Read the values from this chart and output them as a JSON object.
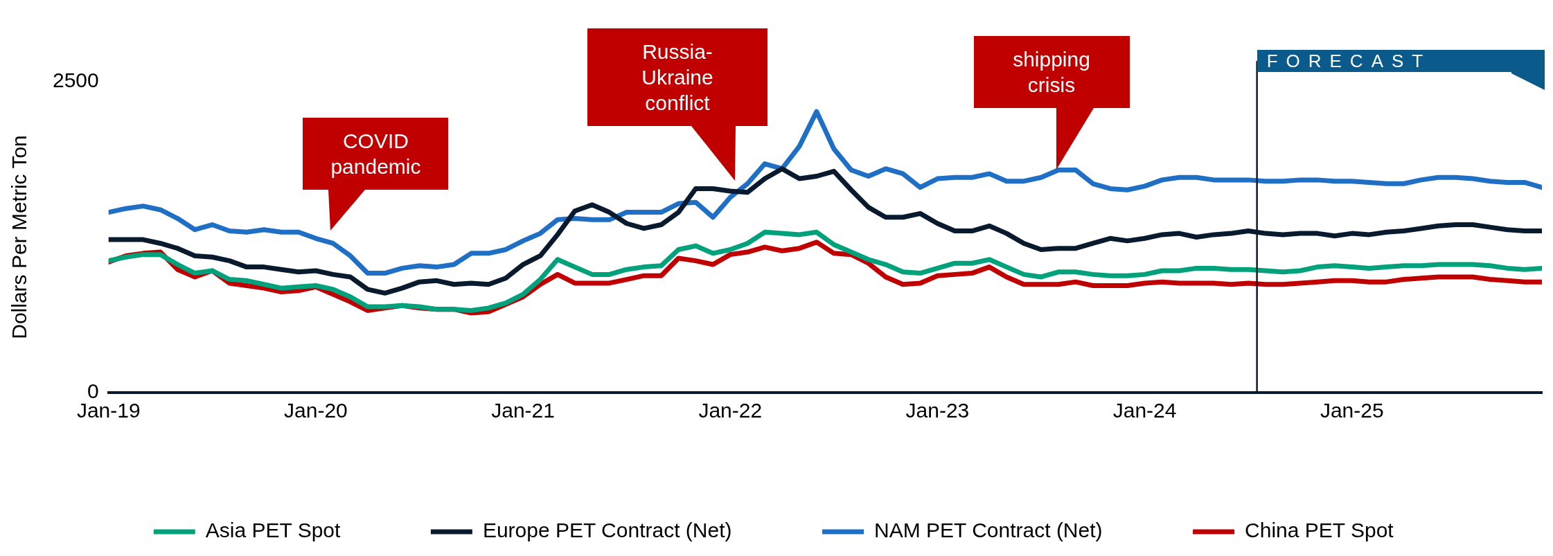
{
  "chart_data": {
    "type": "line",
    "ylabel": "Dollars Per Metric Ton",
    "x": [
      "2019-01",
      "2019-02",
      "2019-03",
      "2019-04",
      "2019-05",
      "2019-06",
      "2019-07",
      "2019-08",
      "2019-09",
      "2019-10",
      "2019-11",
      "2019-12",
      "2020-01",
      "2020-02",
      "2020-03",
      "2020-04",
      "2020-05",
      "2020-06",
      "2020-07",
      "2020-08",
      "2020-09",
      "2020-10",
      "2020-11",
      "2020-12",
      "2021-01",
      "2021-02",
      "2021-03",
      "2021-04",
      "2021-05",
      "2021-06",
      "2021-07",
      "2021-08",
      "2021-09",
      "2021-10",
      "2021-11",
      "2021-12",
      "2022-01",
      "2022-02",
      "2022-03",
      "2022-04",
      "2022-05",
      "2022-06",
      "2022-07",
      "2022-08",
      "2022-09",
      "2022-10",
      "2022-11",
      "2022-12",
      "2023-01",
      "2023-02",
      "2023-03",
      "2023-04",
      "2023-05",
      "2023-06",
      "2023-07",
      "2023-08",
      "2023-09",
      "2023-10",
      "2023-11",
      "2023-12",
      "2024-01",
      "2024-02",
      "2024-03",
      "2024-04",
      "2024-05",
      "2024-06",
      "2024-07",
      "2024-08",
      "2024-09",
      "2024-10",
      "2024-11",
      "2024-12",
      "2025-01",
      "2025-02",
      "2025-03",
      "2025-04",
      "2025-05",
      "2025-06",
      "2025-07",
      "2025-08",
      "2025-09",
      "2025-10",
      "2025-11",
      "2025-12"
    ],
    "series": [
      {
        "name": "Asia PET Spot",
        "color": "#00a17b",
        "values": [
          1060,
          1090,
          1110,
          1110,
          1030,
          960,
          980,
          910,
          900,
          870,
          840,
          850,
          860,
          830,
          770,
          690,
          690,
          700,
          690,
          670,
          670,
          660,
          680,
          720,
          790,
          910,
          1070,
          1010,
          950,
          950,
          990,
          1010,
          1020,
          1150,
          1180,
          1120,
          1150,
          1200,
          1290,
          1280,
          1270,
          1290,
          1190,
          1130,
          1070,
          1030,
          970,
          960,
          1000,
          1040,
          1040,
          1070,
          1010,
          950,
          930,
          970,
          970,
          950,
          940,
          940,
          950,
          980,
          980,
          1000,
          1000,
          990,
          990,
          980,
          970,
          980,
          1010,
          1020,
          1010,
          1000,
          1010,
          1020,
          1020,
          1030,
          1030,
          1030,
          1020,
          1000,
          990,
          1000
        ]
      },
      {
        "name": "Europe PET Contract (Net)",
        "color": "#0a1a2e",
        "values": [
          1230,
          1230,
          1230,
          1200,
          1160,
          1100,
          1090,
          1060,
          1010,
          1010,
          990,
          970,
          980,
          950,
          930,
          830,
          800,
          840,
          890,
          900,
          870,
          880,
          870,
          920,
          1030,
          1100,
          1270,
          1460,
          1510,
          1450,
          1360,
          1320,
          1350,
          1450,
          1640,
          1640,
          1620,
          1610,
          1720,
          1800,
          1720,
          1740,
          1780,
          1630,
          1490,
          1410,
          1410,
          1440,
          1360,
          1300,
          1300,
          1340,
          1280,
          1200,
          1150,
          1160,
          1160,
          1200,
          1240,
          1220,
          1240,
          1270,
          1280,
          1250,
          1270,
          1280,
          1300,
          1280,
          1270,
          1280,
          1280,
          1260,
          1280,
          1270,
          1290,
          1300,
          1320,
          1340,
          1350,
          1350,
          1330,
          1310,
          1300,
          1300
        ]
      },
      {
        "name": "NAM PET Contract (Net)",
        "color": "#1f6fc5",
        "values": [
          1450,
          1480,
          1500,
          1470,
          1400,
          1310,
          1350,
          1300,
          1290,
          1310,
          1290,
          1290,
          1240,
          1200,
          1100,
          960,
          960,
          1000,
          1020,
          1010,
          1030,
          1120,
          1120,
          1150,
          1220,
          1280,
          1390,
          1400,
          1390,
          1390,
          1450,
          1450,
          1450,
          1520,
          1530,
          1410,
          1570,
          1680,
          1840,
          1800,
          1980,
          2260,
          1960,
          1790,
          1740,
          1800,
          1760,
          1650,
          1720,
          1730,
          1730,
          1760,
          1700,
          1700,
          1730,
          1790,
          1790,
          1680,
          1640,
          1630,
          1660,
          1710,
          1730,
          1730,
          1710,
          1710,
          1710,
          1700,
          1700,
          1710,
          1710,
          1700,
          1700,
          1690,
          1680,
          1680,
          1710,
          1730,
          1730,
          1720,
          1700,
          1690,
          1690,
          1650
        ]
      },
      {
        "name": "China PET Spot",
        "color": "#c00000",
        "values": [
          1050,
          1100,
          1120,
          1130,
          990,
          930,
          980,
          880,
          860,
          840,
          810,
          820,
          850,
          790,
          730,
          660,
          680,
          700,
          680,
          670,
          670,
          640,
          650,
          710,
          770,
          870,
          950,
          880,
          880,
          880,
          910,
          940,
          940,
          1080,
          1060,
          1030,
          1110,
          1130,
          1170,
          1140,
          1160,
          1210,
          1120,
          1110,
          1040,
          930,
          870,
          880,
          940,
          950,
          960,
          1010,
          930,
          870,
          870,
          870,
          890,
          860,
          860,
          860,
          880,
          890,
          880,
          880,
          880,
          870,
          880,
          870,
          870,
          880,
          890,
          900,
          900,
          890,
          890,
          910,
          920,
          930,
          930,
          930,
          910,
          900,
          890,
          890
        ]
      }
    ],
    "xlim": [
      "2019-01",
      "2025-12"
    ],
    "xticks": [
      {
        "value": "2019-01",
        "label": "Jan-19"
      },
      {
        "value": "2020-01",
        "label": "Jan-20"
      },
      {
        "value": "2021-01",
        "label": "Jan-21"
      },
      {
        "value": "2022-01",
        "label": "Jan-22"
      },
      {
        "value": "2023-01",
        "label": "Jan-23"
      },
      {
        "value": "2024-01",
        "label": "Jan-24"
      },
      {
        "value": "2025-01",
        "label": "Jan-25"
      }
    ],
    "ylim": [
      0,
      2500
    ],
    "yticks": [
      0,
      2500
    ],
    "ref_lines": [
      {
        "axis": "x",
        "value": "2024-07-16",
        "label": "FORECAST",
        "color": "#0a1a2e"
      }
    ],
    "annotations": [
      "COVID pandemic",
      "Russia-Ukraine conflict",
      "shipping crisis"
    ],
    "grid": false,
    "legend": "bottom",
    "marker": "none",
    "line_style": "solid"
  }
}
